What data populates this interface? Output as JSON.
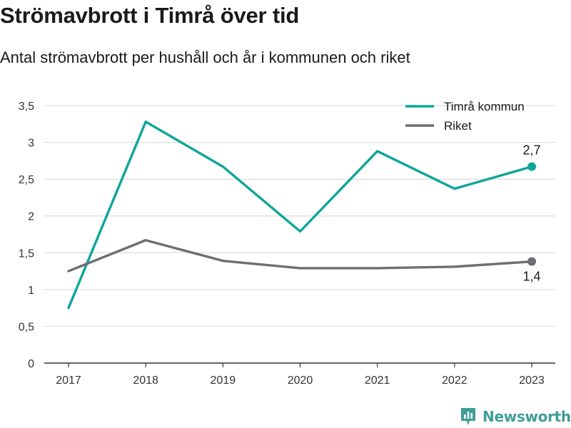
{
  "header": {
    "title": "Strömavbrott i Timrå över tid",
    "subtitle": "Antal strömavbrott per hushåll och år i kommunen och riket"
  },
  "brand": {
    "name": "Newsworthy",
    "color": "#3f9e95"
  },
  "chart_data": {
    "type": "line",
    "x": [
      "2017",
      "2018",
      "2019",
      "2020",
      "2021",
      "2022",
      "2023"
    ],
    "series": [
      {
        "name": "Timrå kommun",
        "color": "#0ea59b",
        "values": [
          0.75,
          3.28,
          2.67,
          1.79,
          2.88,
          2.37,
          2.67
        ],
        "end_label": "2,7",
        "end_label_position": "above"
      },
      {
        "name": "Riket",
        "color": "#6e6e73",
        "values": [
          1.25,
          1.67,
          1.39,
          1.29,
          1.29,
          1.31,
          1.38
        ],
        "end_label": "1,4",
        "end_label_position": "below"
      }
    ],
    "ylim": [
      0,
      3.5
    ],
    "yticks": [
      0,
      0.5,
      1,
      1.5,
      2,
      2.5,
      3,
      3.5
    ],
    "ytick_labels": [
      "0",
      "0,5",
      "1",
      "1,5",
      "2",
      "2,5",
      "3",
      "3,5"
    ],
    "grid": true,
    "legend": "top-right",
    "xlabel": "",
    "ylabel": ""
  }
}
